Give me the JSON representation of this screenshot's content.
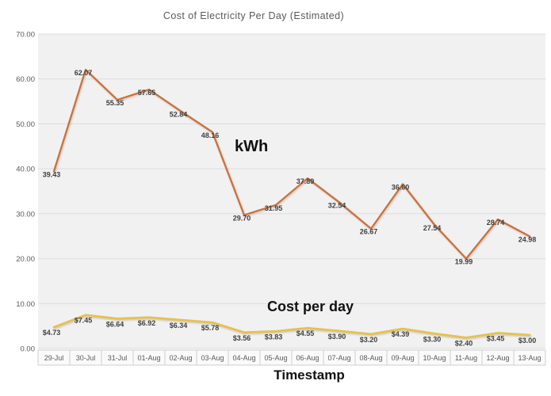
{
  "chart_data": {
    "type": "line",
    "title": "Cost of Electricity Per Day (Estimated)",
    "xlabel": "Timestamp",
    "ylabel": "",
    "ylim": [
      0,
      70
    ],
    "ytick_step": 10,
    "ytick_labels": [
      "0.00",
      "10.00",
      "20.00",
      "30.00",
      "40.00",
      "50.00",
      "60.00",
      "70.00"
    ],
    "grid": true,
    "legend_position": "none",
    "categories": [
      "29-Jul",
      "30-Jul",
      "31-Jul",
      "01-Aug",
      "02-Aug",
      "03-Aug",
      "04-Aug",
      "05-Aug",
      "06-Aug",
      "07-Aug",
      "08-Aug",
      "09-Aug",
      "10-Aug",
      "11-Aug",
      "12-Aug",
      "13-Aug"
    ],
    "series": [
      {
        "name": "kWh",
        "slug": "kwh",
        "color": "#CC6F35",
        "stroke_width": 2.25,
        "label_dy": 7,
        "values": [
          39.43,
          62.07,
          55.35,
          57.65,
          52.84,
          48.16,
          29.7,
          31.95,
          37.89,
          32.54,
          26.67,
          36.6,
          27.54,
          19.99,
          28.74,
          24.98
        ],
        "labels": [
          "39.43",
          "62.07",
          "55.35",
          "57.65",
          "52.84",
          "48.16",
          "29.70",
          "31.95",
          "37.89",
          "32.54",
          "26.67",
          "36.60",
          "27.54",
          "19.99",
          "28.74",
          "24.98"
        ]
      },
      {
        "name": "Cost per day",
        "slug": "cost-per-day",
        "color": "#E8C14B",
        "stroke_width": 2.75,
        "label_dy": 10,
        "values": [
          4.73,
          7.45,
          6.64,
          6.92,
          6.34,
          5.78,
          3.56,
          3.83,
          4.55,
          3.9,
          3.2,
          4.39,
          3.3,
          2.4,
          3.45,
          3.0
        ],
        "labels": [
          "$4.73",
          "$7.45",
          "$6.64",
          "$6.92",
          "$6.34",
          "$5.78",
          "$3.56",
          "$3.83",
          "$4.55",
          "$3.90",
          "$3.20",
          "$4.39",
          "$3.30",
          "$2.40",
          "$3.45",
          "$3.00"
        ]
      }
    ],
    "series_annotations": [
      {
        "text": "kWh"
      },
      {
        "text": "Cost per day"
      }
    ],
    "colors": {
      "title_text": "#595959",
      "axis_text": "#595959",
      "data_label_text": "#404040",
      "grid": "#DCDCDC",
      "plot_bg": "#F1F1F1",
      "cell_border": "#CFCFCF",
      "cell_bg": "#FAFAFA",
      "annotation_text": "#111111",
      "page_bg": "#FFFFFF"
    }
  }
}
